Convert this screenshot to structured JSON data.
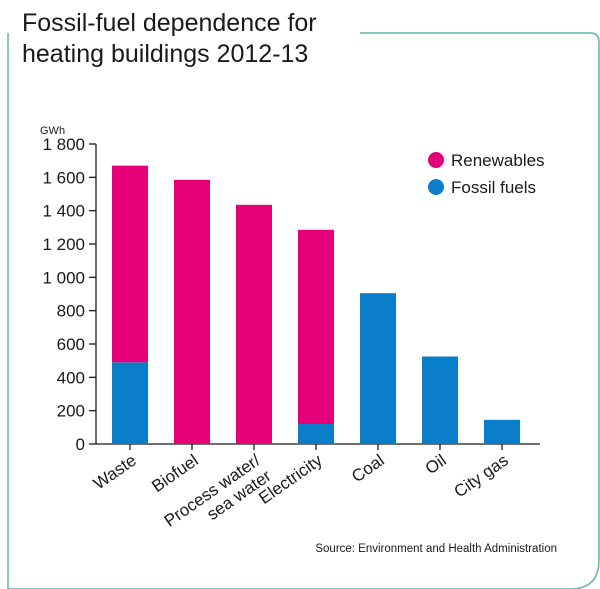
{
  "title_lines": [
    "Fossil-fuel dependence for",
    "heating buildings 2012-13"
  ],
  "source": "Source: Environment and Health Administration",
  "colors": {
    "renewables": "#e5007a",
    "fossil": "#0a7ec9",
    "frame": "#5bb7ae",
    "axis": "#1a1a1a"
  },
  "chart_data": {
    "type": "bar",
    "stacked": true,
    "title": "Fossil-fuel dependence for heating buildings 2012-13",
    "ylabel": "GWh",
    "ylim": [
      0,
      1800
    ],
    "yticks": [
      0,
      200,
      400,
      600,
      800,
      1000,
      1200,
      1400,
      1600,
      1800
    ],
    "ytick_labels": [
      "0",
      "200",
      "400",
      "600",
      "800",
      "1 000",
      "1 200",
      "1 400",
      "1 600",
      "1 800"
    ],
    "categories": [
      "Waste",
      "Biofuel",
      "Process water/\nsea water",
      "Electricity",
      "Coal",
      "Oil",
      "City gas"
    ],
    "series": [
      {
        "name": "Fossil fuels",
        "values": [
          490,
          0,
          0,
          120,
          905,
          525,
          145
        ]
      },
      {
        "name": "Renewables",
        "values": [
          1180,
          1585,
          1435,
          1165,
          0,
          0,
          0
        ]
      }
    ],
    "legend": [
      "Renewables",
      "Fossil fuels"
    ],
    "legend_position": "top-right",
    "grid": false
  }
}
